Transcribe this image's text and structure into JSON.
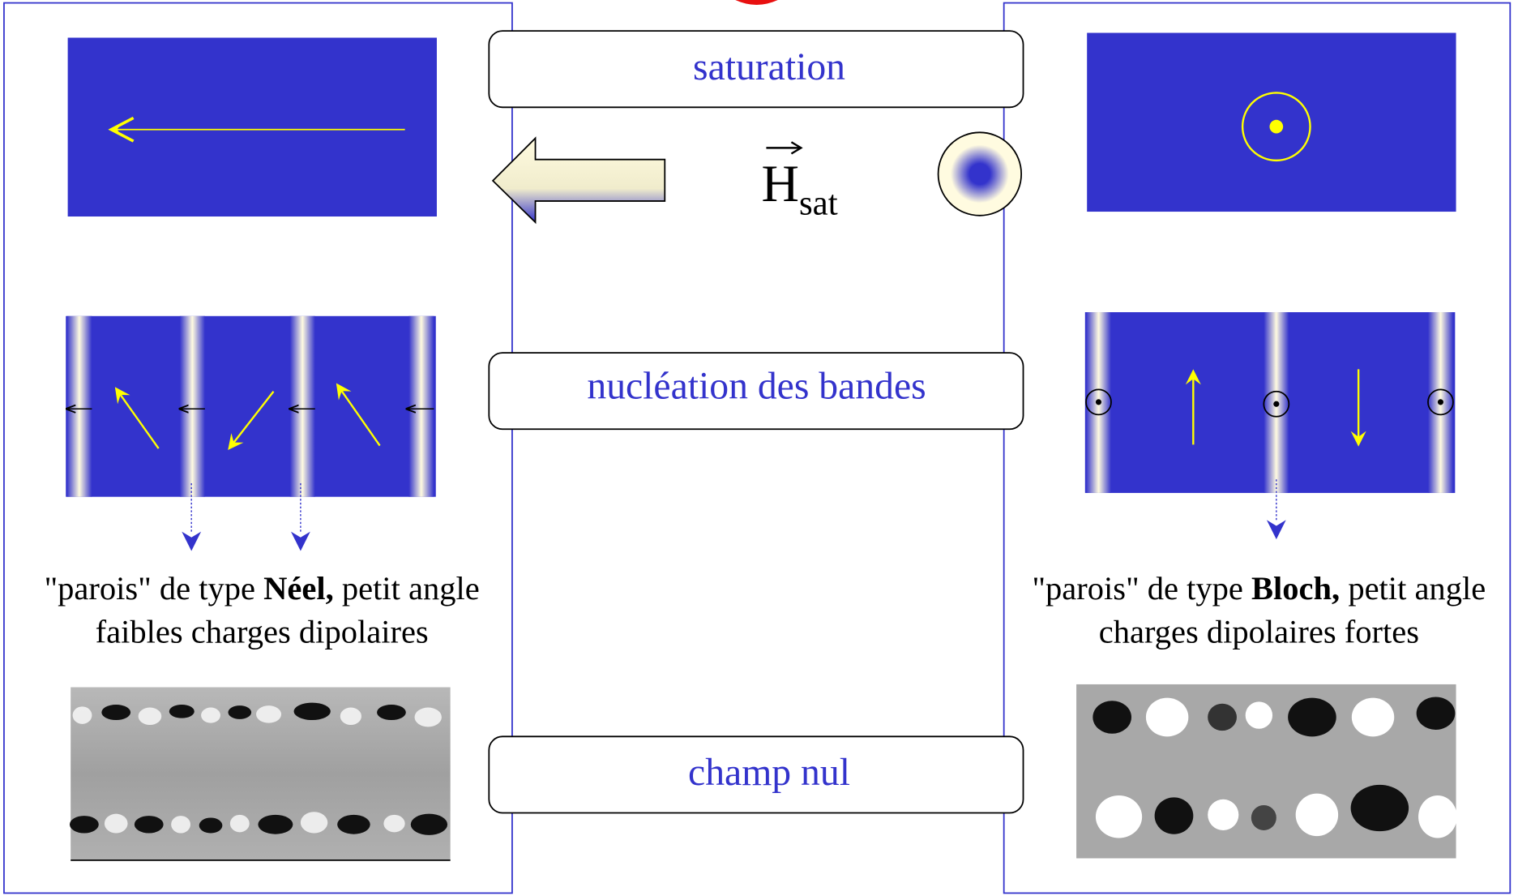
{
  "stages": [
    "saturation",
    "nucléation des bandes",
    "champ nul"
  ],
  "field": {
    "symbol": "H",
    "subscript": "sat"
  },
  "left": {
    "caption": {
      "line1": [
        "\"parois\" de type ",
        "Néel,",
        " petit angle"
      ],
      "line2": "faibles charges dipolaires"
    }
  },
  "right": {
    "caption": {
      "line1": [
        "\"parois\" de type ",
        "Bloch,",
        " petit angle"
      ],
      "line2": "charges dipolaires fortes"
    }
  }
}
